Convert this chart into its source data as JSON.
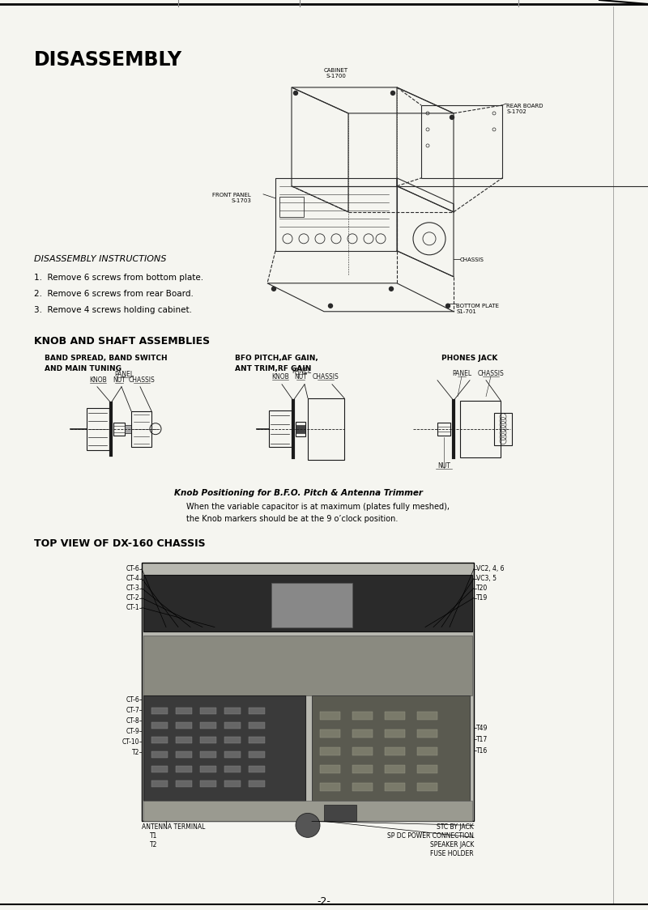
{
  "page_title": "DISASSEMBLY",
  "bg_color": "#f5f5f0",
  "text_color": "#000000",
  "section1_title": "DISASSEMBLY INSTRUCTIONS",
  "instructions": [
    "1.  Remove 6 screws from bottom plate.",
    "2.  Remove 6 screws from rear Board.",
    "3.  Remove 4 screws holding cabinet."
  ],
  "section2_title": "KNOB AND SHAFT ASSEMBLIES",
  "knob_labels": [
    [
      "BAND SPREAD, BAND SWITCH",
      "AND MAIN TUNING"
    ],
    [
      "BFO PITCH,AF GAIN,",
      "ANT TRIM,RF GAIN"
    ],
    [
      "PHONES JACK",
      ""
    ]
  ],
  "knob_caption_line1": "Knob Positioning for B.F.O. Pitch & Antenna Trimmer",
  "knob_caption_line2": "When the variable capacitor is at maximum (plates fully meshed),",
  "knob_caption_line3": "the Knob markers should be at the 9 o’clock position.",
  "section3_title": "TOP VIEW OF DX-160 CHASSIS",
  "left_labels_top": [
    "CT-6",
    "CT-4",
    "CT-3",
    "CT-2",
    "CT-1"
  ],
  "right_labels_top": [
    "VC2, 4, 6",
    "VC3, 5",
    "T20",
    "T19"
  ],
  "left_labels_bottom": [
    "CT-6",
    "CT-7",
    "CT-8",
    "CT-9",
    "CT-10",
    "T2"
  ],
  "right_labels_bottom": [
    "T49",
    "T17",
    "T16"
  ],
  "bottom_labels_left": [
    "ANTENNA TERMINAL",
    "T1",
    "T2"
  ],
  "bottom_labels_right": [
    "STC BY JACK",
    "SP DC POWER CONNECTION",
    "SPEAKER JACK",
    "FUSE HOLDER"
  ],
  "page_number": "-2-"
}
